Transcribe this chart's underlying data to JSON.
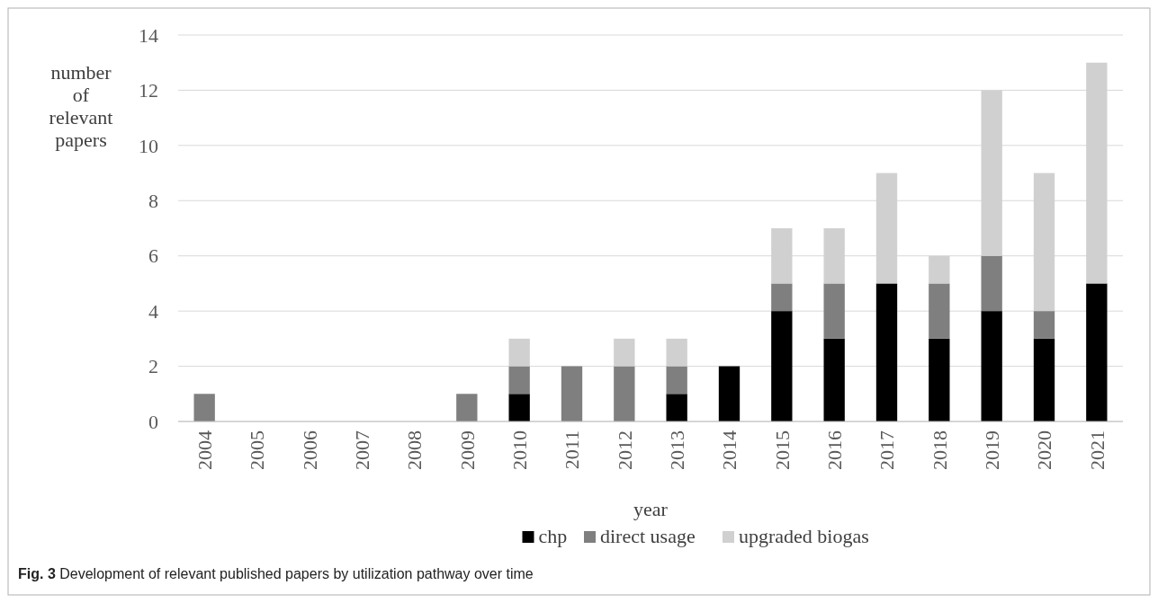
{
  "chart_data": {
    "type": "bar",
    "stacked": true,
    "xlabel": "year",
    "ylabel": "number of relevant papers",
    "categories": [
      "2004",
      "2005",
      "2006",
      "2007",
      "2008",
      "2009",
      "2010",
      "2011",
      "2012",
      "2013",
      "2014",
      "2015",
      "2016",
      "2017",
      "2018",
      "2019",
      "2020",
      "2021"
    ],
    "series": [
      {
        "name": "chp",
        "color": "#000000",
        "values": [
          0,
          0,
          0,
          0,
          0,
          0,
          1,
          0,
          0,
          1,
          2,
          4,
          3,
          5,
          3,
          4,
          3,
          5
        ]
      },
      {
        "name": "direct usage",
        "color": "#7f7f7f",
        "values": [
          1,
          0,
          0,
          0,
          0,
          1,
          1,
          2,
          2,
          1,
          0,
          1,
          2,
          0,
          2,
          2,
          1,
          0
        ]
      },
      {
        "name": "upgraded biogas",
        "color": "#d0d0d0",
        "values": [
          0,
          0,
          0,
          0,
          0,
          0,
          1,
          0,
          1,
          1,
          0,
          2,
          2,
          4,
          1,
          6,
          5,
          8
        ]
      }
    ],
    "ylim": [
      0,
      14
    ],
    "yticks": [
      0,
      2,
      4,
      6,
      8,
      10,
      12,
      14
    ],
    "grid": "y",
    "legend": "bottom",
    "annotations": [
      "Fig. 3  Development of relevant published papers by utilization pathway over time"
    ]
  }
}
